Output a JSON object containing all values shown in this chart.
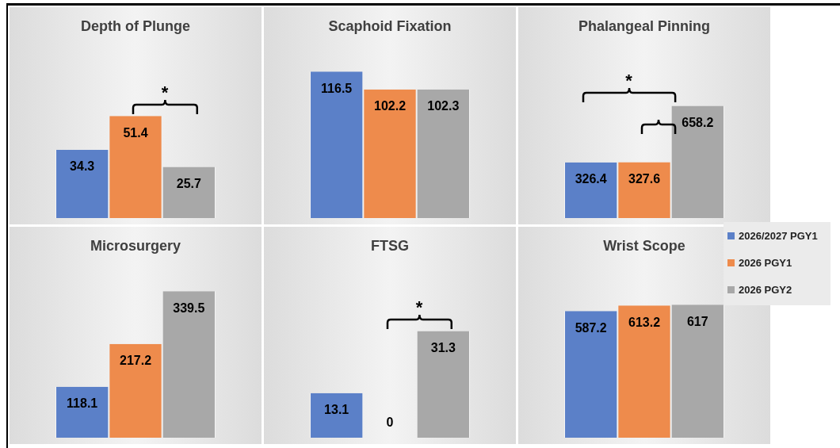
{
  "chart_data": [
    {
      "type": "bar",
      "title": "Depth of Plunge",
      "categories": [
        null
      ],
      "data_labels": true,
      "annotations": [
        "*"
      ],
      "series": [
        {
          "color": "#5b80c8",
          "values": [
            34.3
          ]
        },
        {
          "color": "#ee8b4c",
          "values": [
            51.4
          ]
        },
        {
          "color": "#a8a8a8",
          "values": [
            25.7
          ]
        }
      ]
    },
    {
      "type": "bar",
      "title": "Scaphoid Fixation",
      "categories": [
        null
      ],
      "data_labels": true,
      "series": [
        {
          "color": "#5b80c8",
          "values": [
            116.5
          ]
        },
        {
          "color": "#ee8b4c",
          "values": [
            102.2
          ]
        },
        {
          "color": "#a8a8a8",
          "values": [
            102.3
          ]
        }
      ]
    },
    {
      "type": "bar",
      "title": "Phalangeal Pinning",
      "categories": [
        null
      ],
      "data_labels": true,
      "annotations": [
        "*"
      ],
      "legend": "right",
      "series": [
        {
          "name": "2026/2027 PGY1",
          "color": "#5b80c8",
          "values": [
            326.4
          ]
        },
        {
          "name": "2026 PGY1",
          "color": "#ee8b4c",
          "values": [
            327.6
          ]
        },
        {
          "name": "2026 PGY2",
          "color": "#a8a8a8",
          "values": [
            658.2
          ]
        }
      ]
    },
    {
      "type": "bar",
      "title": "Microsurgery",
      "categories": [
        null
      ],
      "data_labels": true,
      "series": [
        {
          "color": "#5b80c8",
          "values": [
            118.1
          ]
        },
        {
          "color": "#ee8b4c",
          "values": [
            217.2
          ]
        },
        {
          "color": "#a8a8a8",
          "values": [
            339.5
          ]
        }
      ]
    },
    {
      "type": "bar",
      "title": "FTSG",
      "categories": [
        null
      ],
      "data_labels": true,
      "annotations": [
        "*"
      ],
      "series": [
        {
          "color": "#5b80c8",
          "values": [
            13.1
          ]
        },
        {
          "color": "#ee8b4c",
          "values": [
            0
          ]
        },
        {
          "color": "#a8a8a8",
          "values": [
            31.3
          ]
        }
      ]
    },
    {
      "type": "bar",
      "title": "Wrist Scope",
      "categories": [
        null
      ],
      "data_labels": true,
      "series": [
        {
          "color": "#5b80c8",
          "values": [
            587.2
          ]
        },
        {
          "color": "#ee8b4c",
          "values": [
            613.2
          ]
        },
        {
          "color": "#a8a8a8",
          "values": [
            617
          ]
        }
      ]
    }
  ]
}
